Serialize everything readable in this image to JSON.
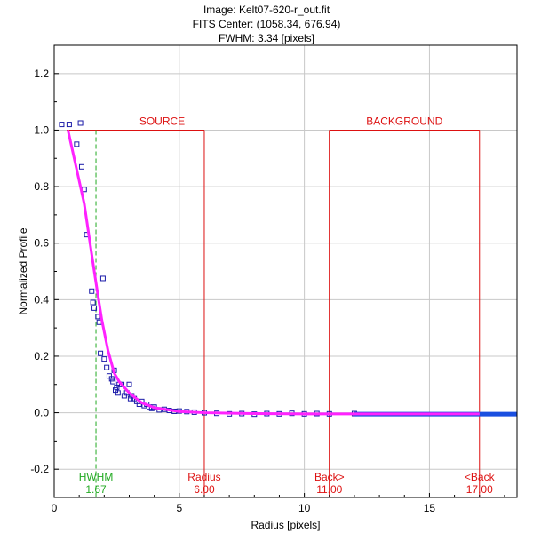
{
  "chart_data": {
    "type": "scatter",
    "title_lines": [
      "Image: Kelt07-620-r_out.fit",
      "FITS Center: (1058.34,  676.94)",
      "FWHM: 3.34 [pixels]"
    ],
    "xlabel": "Radius [pixels]",
    "ylabel": "Normalized Profile",
    "xlim": [
      0,
      18.5
    ],
    "ylim": [
      -0.3,
      1.3
    ],
    "xticks": [
      0,
      5,
      10,
      15
    ],
    "xtick_labels": [
      "0",
      "5",
      "10",
      "15"
    ],
    "yticks": [
      -0.2,
      0.0,
      0.2,
      0.4,
      0.6,
      0.8,
      1.0,
      1.2
    ],
    "ytick_labels": [
      "-0.2",
      "0.0",
      "0.2",
      "0.4",
      "0.6",
      "0.8",
      "1.0",
      "1.2"
    ],
    "grid": true,
    "colors": {
      "points": "#1a1aa8",
      "fit": "#ff22ff",
      "apertures": "#dd1111",
      "hwhm": "#22aa22",
      "grid": "#c8c8c8",
      "tail": "#1a4fe0"
    },
    "regions": [
      {
        "label": "SOURCE",
        "x0": 0.5,
        "x1": 6.0,
        "y": 1.0
      },
      {
        "label": "BACKGROUND",
        "x0": 11.0,
        "x1": 17.0,
        "y": 1.0
      }
    ],
    "markers": [
      {
        "label": "HWHM",
        "value_text": "1.67",
        "x": 1.67,
        "color": "#22aa22",
        "style": "dashed"
      },
      {
        "label": "Radius",
        "value_text": "6.00",
        "x": 6.0,
        "color": "#dd1111",
        "style": "solid"
      },
      {
        "label": "Back>",
        "value_text": "11.00",
        "x": 11.0,
        "color": "#dd1111",
        "style": "solid"
      },
      {
        "label": "<Back",
        "value_text": "17.00",
        "x": 17.0,
        "color": "#dd1111",
        "style": "solid"
      }
    ],
    "fit_series": {
      "name": "",
      "x": [
        0.55,
        0.9,
        1.2,
        1.5,
        1.67,
        1.9,
        2.15,
        2.4,
        2.6,
        3.0,
        3.5,
        4.0,
        5.0,
        6.0,
        8.0,
        10.0,
        13.0,
        17.0
      ],
      "y": [
        1.0,
        0.86,
        0.74,
        0.56,
        0.46,
        0.33,
        0.22,
        0.14,
        0.11,
        0.07,
        0.035,
        0.018,
        0.004,
        0.0,
        -0.003,
        -0.004,
        -0.004,
        -0.004
      ]
    },
    "data_series": {
      "name": "",
      "x": [
        0.3,
        0.6,
        0.9,
        1.05,
        1.1,
        1.2,
        1.3,
        1.5,
        1.55,
        1.6,
        1.75,
        1.8,
        1.85,
        1.95,
        2.0,
        2.1,
        2.2,
        2.3,
        2.35,
        2.4,
        2.45,
        2.5,
        2.55,
        2.6,
        2.7,
        2.8,
        2.9,
        3.0,
        3.05,
        3.1,
        3.2,
        3.3,
        3.4,
        3.5,
        3.6,
        3.7,
        3.8,
        3.9,
        4.0,
        4.2,
        4.4,
        4.6,
        4.8,
        5.0,
        5.3,
        5.6,
        6.0,
        6.5,
        7.0,
        7.5,
        8.0,
        8.5,
        9.0,
        9.5,
        10.0,
        10.5,
        11.0,
        12.0
      ],
      "y": [
        1.02,
        1.02,
        0.95,
        1.025,
        0.87,
        0.79,
        0.63,
        0.43,
        0.39,
        0.37,
        0.34,
        0.32,
        0.21,
        0.475,
        0.19,
        0.16,
        0.13,
        0.12,
        0.11,
        0.15,
        0.08,
        0.09,
        0.07,
        0.1,
        0.1,
        0.06,
        0.07,
        0.1,
        0.05,
        0.06,
        0.05,
        0.04,
        0.03,
        0.04,
        0.025,
        0.03,
        0.02,
        0.015,
        0.02,
        0.01,
        0.012,
        0.008,
        0.005,
        0.006,
        0.004,
        0.002,
        0.0,
        -0.002,
        -0.004,
        -0.003,
        -0.005,
        -0.003,
        -0.004,
        -0.002,
        -0.004,
        -0.003,
        -0.004,
        -0.003
      ]
    },
    "tail": {
      "x0": 12.0,
      "x1": 18.5,
      "y": -0.005
    }
  }
}
